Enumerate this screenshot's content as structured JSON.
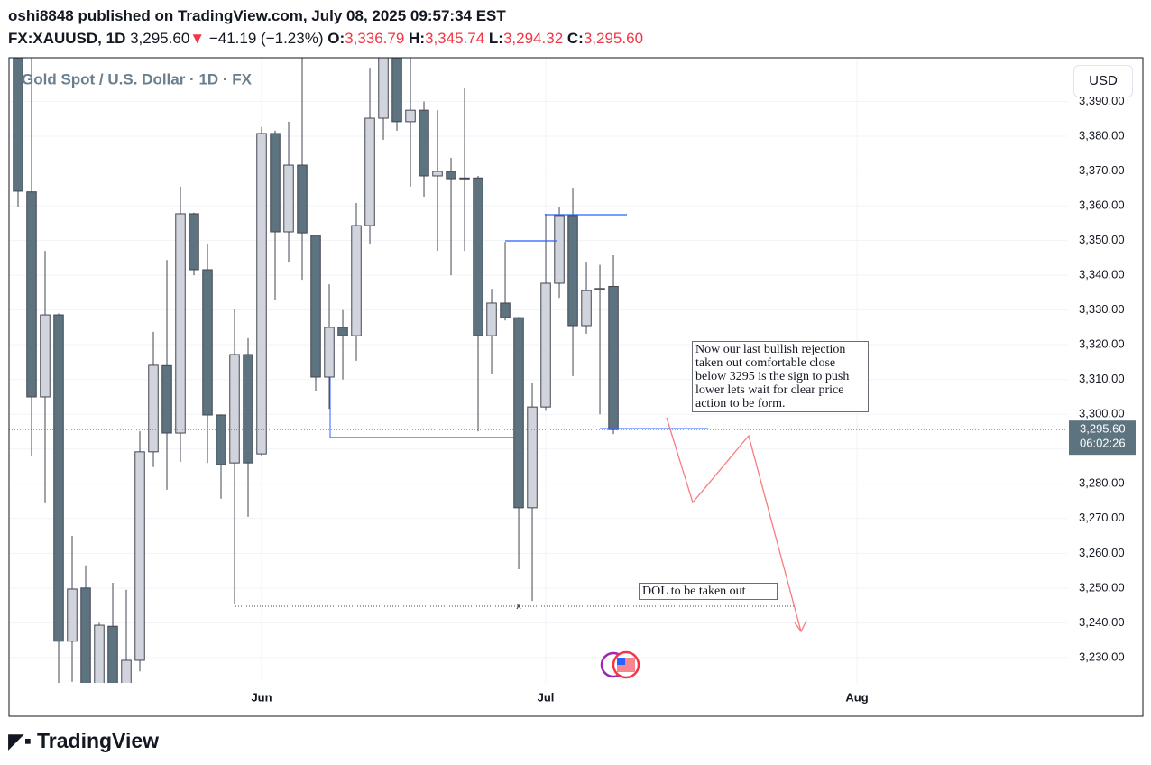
{
  "header": {
    "published": "oshi8848 published on TradingView.com, July 08, 2025 09:57:34 EST",
    "symbol": "FX:XAUUSD, 1D",
    "last": "3,295.60",
    "arrow": "▼",
    "change": "−41.19 (−1.23%)",
    "o_label": "O:",
    "o": "3,336.79",
    "h_label": "H:",
    "h": "3,345.74",
    "l_label": "L:",
    "l": "3,294.32",
    "c_label": "C:",
    "c": "3,295.60"
  },
  "currency": "USD",
  "logo": "TradingView",
  "chart_data": {
    "type": "candlestick",
    "title": "Gold Spot / U.S. Dollar · 1D · FX",
    "up_color": "#d1d4dc",
    "down_color": "#5d7380",
    "wick_color": "#434651",
    "open": [
      3403,
      3364,
      3305,
      3328.6,
      3234.7,
      3250,
      3222,
      3239,
      3222,
      3229.2,
      3289.2,
      3314,
      3294.6,
      3357.7,
      3341.6,
      3299.8,
      3286,
      3317.2,
      3288.6,
      3380.8,
      3352.5,
      3371.7,
      3351.5,
      3310.7,
      3325,
      3322.6,
      3354.3,
      3385.2,
      3405,
      3384.2,
      3387.5,
      3368.6,
      3369.9,
      3367.8,
      3368,
      3322.6,
      3332,
      3327.8,
      3273.1,
      3302.1,
      3337.7,
      3357.2,
      3325.5,
      3336.2,
      3336.79
    ],
    "high": [
      3430,
      3405,
      3347,
      3329,
      3265,
      3256.5,
      3240,
      3251.5,
      3249.5,
      3295.1,
      3323.7,
      3344.4,
      3365.5,
      3358,
      3349.1,
      3300,
      3330.4,
      3321.9,
      3382.6,
      3381.6,
      3384.2,
      3403,
      3351.5,
      3337.4,
      3330,
      3360.8,
      3399.7,
      3410,
      3410,
      3402.6,
      3390,
      3387.5,
      3373.8,
      3394,
      3368.6,
      3336.1,
      3349.6,
      3328,
      3308.9,
      3357.7,
      3359.5,
      3365.2,
      3343.9,
      3343,
      3345.74
    ],
    "low": [
      3359.5,
      3288.1,
      3274.4,
      3222,
      3223,
      3215,
      3215,
      3215,
      3215,
      3226,
      3284.8,
      3278.3,
      3286.3,
      3340,
      3286,
      3275.7,
      3245.3,
      3270.5,
      3288,
      3332.8,
      3343.9,
      3338.7,
      3306.8,
      3301.6,
      3310,
      3315.4,
      3349.1,
      3379,
      3381.6,
      3365.5,
      3362.6,
      3347,
      3340,
      3347,
      3295.1,
      3311.5,
      3327,
      3255.4,
      3246.3,
      3301,
      3333.5,
      3311,
      3323.2,
      3300,
      3294.32
    ],
    "close": [
      3364.2,
      3305,
      3328.6,
      3234.7,
      3249.7,
      3220,
      3239.3,
      3221,
      3229.2,
      3289.2,
      3314.1,
      3294.6,
      3357.7,
      3341.6,
      3299.8,
      3285.5,
      3317.2,
      3286,
      3380.8,
      3352.5,
      3371.7,
      3352.2,
      3310.7,
      3325,
      3322.6,
      3354.3,
      3385.2,
      3405,
      3384.2,
      3387.5,
      3368.6,
      3369.9,
      3367.8,
      3368,
      3322.6,
      3332,
      3327.8,
      3273.1,
      3302.1,
      3337.7,
      3357.2,
      3325.5,
      3335.6,
      3335.8,
      3295.6
    ],
    "xlim": [
      -0.667,
      77.53
    ],
    "xticks": [
      {
        "value": 18,
        "label": "Jun"
      },
      {
        "value": 39,
        "label": "Jul"
      },
      {
        "value": 62,
        "label": "Aug"
      }
    ],
    "ylim": [
      3222.7,
      3402.6
    ],
    "yticks": [
      {
        "value": 3230,
        "label": "3,230.00"
      },
      {
        "value": 3240,
        "label": "3,240.00"
      },
      {
        "value": 3250,
        "label": "3,250.00"
      },
      {
        "value": 3260,
        "label": "3,260.00"
      },
      {
        "value": 3270,
        "label": "3,270.00"
      },
      {
        "value": 3280,
        "label": "3,280.00"
      },
      {
        "value": 3290,
        "label": "3,290.00"
      },
      {
        "value": 3300,
        "label": "3,300.00"
      },
      {
        "value": 3310,
        "label": "3,310.00"
      },
      {
        "value": 3320,
        "label": "3,320.00"
      },
      {
        "value": 3330,
        "label": "3,330.00"
      },
      {
        "value": 3340,
        "label": "3,340.00"
      },
      {
        "value": 3350,
        "label": "3,350.00"
      },
      {
        "value": 3360,
        "label": "3,360.00"
      },
      {
        "value": 3370,
        "label": "3,370.00"
      },
      {
        "value": 3380,
        "label": "3,380.00"
      },
      {
        "value": 3390,
        "label": "3,390.00"
      }
    ],
    "grid": true,
    "last_price_label": "3,295.60",
    "countdown": "06:02:26",
    "annotations": {
      "note": "Now our last bullish rejection taken out comfortable close below 3295 is the sign to push lower lets wait for clear price action to be form.",
      "dol": "DOL to be taken out",
      "marker": "x"
    }
  }
}
